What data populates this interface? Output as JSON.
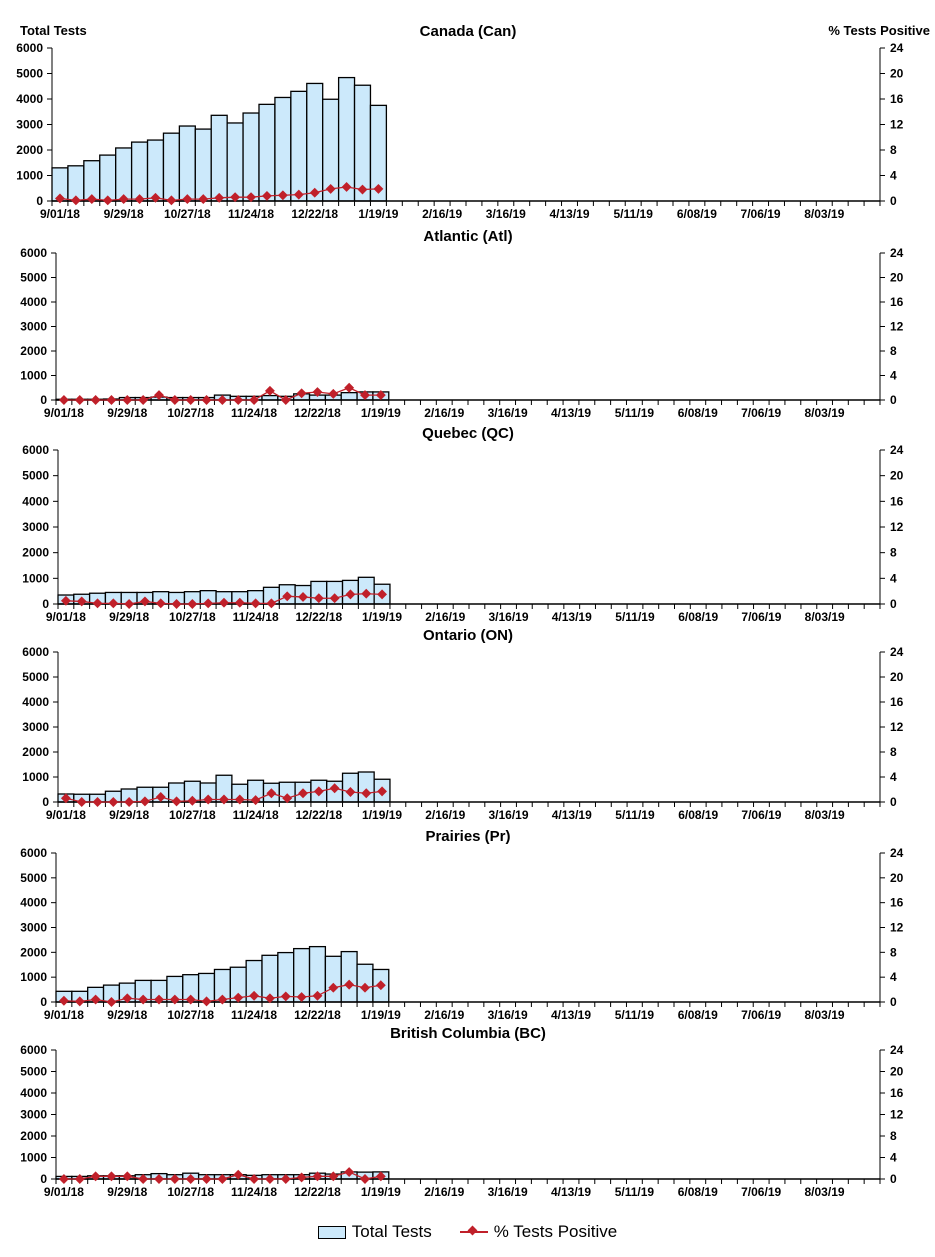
{
  "chart_data": [
    {
      "type": "bar+line",
      "title": "Canada (Can)",
      "ylabel_left": "Total Tests",
      "ylabel_right": "% Tests Positive",
      "values": [
        1300,
        1380,
        1580,
        1800,
        2080,
        2310,
        2390,
        2660,
        2940,
        2820,
        3360,
        3060,
        3450,
        3790,
        4060,
        4300,
        4610,
        3990,
        4840,
        4540,
        3750
      ],
      "pct": [
        0.4,
        0.1,
        0.3,
        0.1,
        0.3,
        0.3,
        0.5,
        0.1,
        0.3,
        0.3,
        0.5,
        0.6,
        0.6,
        0.8,
        0.9,
        1.0,
        1.3,
        1.9,
        2.2,
        1.8,
        1.9
      ]
    },
    {
      "type": "bar+line",
      "title": "Atlantic (Atl)",
      "values": [
        30,
        30,
        30,
        40,
        100,
        100,
        120,
        100,
        100,
        100,
        200,
        150,
        150,
        180,
        150,
        250,
        200,
        200,
        300,
        330,
        330
      ],
      "pct": [
        0,
        0,
        0,
        0,
        0,
        0,
        0.8,
        0,
        0,
        0,
        0,
        0,
        0,
        1.5,
        0,
        1.1,
        1.3,
        1.0,
        2.0,
        0.8,
        0.8
      ]
    },
    {
      "type": "bar+line",
      "title": "Quebec (QC)",
      "values": [
        350,
        380,
        420,
        450,
        450,
        450,
        480,
        450,
        480,
        520,
        480,
        480,
        520,
        650,
        750,
        720,
        880,
        880,
        920,
        1040,
        770
      ],
      "pct": [
        0.5,
        0.4,
        0.1,
        0.1,
        0,
        0.4,
        0.1,
        0,
        0,
        0.1,
        0.2,
        0.2,
        0.1,
        0.1,
        1.2,
        1.1,
        0.9,
        0.9,
        1.5,
        1.6,
        1.5
      ]
    },
    {
      "type": "bar+line",
      "title": "Ontario (ON)",
      "values": [
        320,
        310,
        310,
        430,
        520,
        590,
        590,
        760,
        830,
        760,
        1070,
        710,
        870,
        750,
        790,
        790,
        870,
        830,
        1150,
        1200,
        910
      ],
      "pct": [
        0.6,
        0,
        0,
        0,
        0,
        0.1,
        0.8,
        0.1,
        0.2,
        0.4,
        0.4,
        0.4,
        0.3,
        1.4,
        0.6,
        1.4,
        1.7,
        2.2,
        1.6,
        1.4,
        1.7
      ]
    },
    {
      "type": "bar+line",
      "title": "Prairies (Pr)",
      "values": [
        430,
        430,
        590,
        680,
        760,
        870,
        870,
        1030,
        1100,
        1150,
        1310,
        1400,
        1670,
        1880,
        1990,
        2150,
        2230,
        1840,
        2030,
        1520,
        1310
      ],
      "pct": [
        0.2,
        0.1,
        0.4,
        0,
        0.6,
        0.4,
        0.4,
        0.4,
        0.4,
        0.1,
        0.4,
        0.7,
        1.0,
        0.6,
        0.9,
        0.8,
        1.0,
        2.3,
        2.8,
        2.3,
        2.7
      ]
    },
    {
      "type": "bar+line",
      "title": "British Columbia (BC)",
      "values": [
        120,
        120,
        150,
        150,
        150,
        200,
        250,
        200,
        270,
        200,
        200,
        200,
        170,
        200,
        200,
        200,
        270,
        230,
        330,
        320,
        330
      ],
      "pct": [
        0,
        0,
        0.5,
        0.5,
        0.5,
        0,
        0,
        0,
        0,
        0,
        0,
        0.8,
        0,
        0,
        0,
        0.3,
        0.5,
        0.5,
        1.3,
        0,
        0.5
      ]
    }
  ],
  "x_ticks": [
    "9/01/18",
    "9/29/18",
    "10/27/18",
    "11/24/18",
    "12/22/18",
    "1/19/19",
    "2/16/19",
    "3/16/19",
    "4/13/19",
    "5/11/19",
    "6/08/19",
    "7/06/19",
    "8/03/19"
  ],
  "y_left_ticks": [
    0,
    1000,
    2000,
    3000,
    4000,
    5000,
    6000
  ],
  "y_right_ticks": [
    0,
    4,
    8,
    12,
    16,
    20,
    24
  ],
  "ylim_left": [
    0,
    6000
  ],
  "ylim_right": [
    0,
    24
  ],
  "weeks_on_axis": 52,
  "legend": {
    "bars": "Total Tests",
    "line": "% Tests Positive",
    "position": "bottom"
  },
  "colors": {
    "bar": "#cce9fb",
    "line": "#c0202a"
  }
}
